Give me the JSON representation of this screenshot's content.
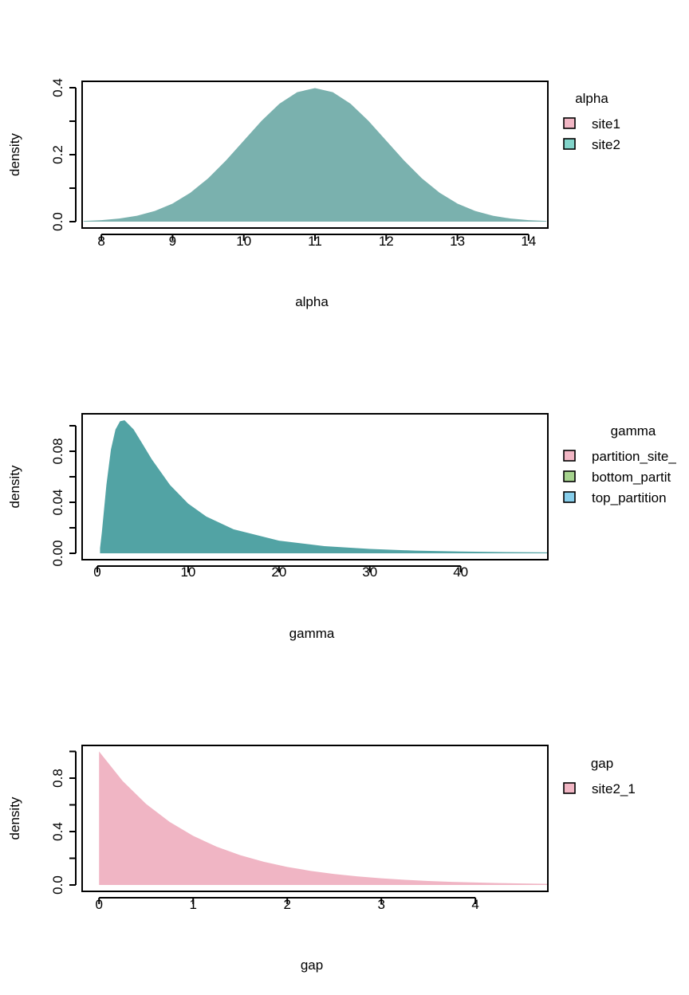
{
  "chart_data": [
    {
      "type": "area",
      "title": "",
      "xlabel": "alpha",
      "ylabel": "density",
      "xlim": [
        7.73,
        14.27
      ],
      "ylim": [
        0,
        0.4
      ],
      "xticks": [
        8,
        9,
        10,
        11,
        12,
        13,
        14
      ],
      "yticks": [
        0,
        0.1,
        0.2,
        0.3,
        0.4
      ],
      "ytick_labels": [
        "0.0",
        "0.2",
        "0.4"
      ],
      "ytick_label_values": [
        0,
        0.2,
        0.4
      ],
      "fill": "#7AB1AE",
      "x": [
        7.75,
        8,
        8.25,
        8.5,
        8.75,
        9,
        9.25,
        9.5,
        9.75,
        10,
        10.25,
        10.5,
        10.75,
        11,
        11.25,
        11.5,
        11.75,
        12,
        12.25,
        12.5,
        12.75,
        13,
        13.25,
        13.5,
        13.75,
        14,
        14.25
      ],
      "y": [
        0.002,
        0.0044,
        0.0091,
        0.0175,
        0.0317,
        0.054,
        0.0863,
        0.1295,
        0.1826,
        0.242,
        0.3011,
        0.3521,
        0.3867,
        0.3989,
        0.3867,
        0.3521,
        0.3011,
        0.242,
        0.1826,
        0.1295,
        0.0863,
        0.054,
        0.0317,
        0.0175,
        0.0091,
        0.0044,
        0.002
      ],
      "legend": {
        "title": "alpha",
        "placement": "right",
        "entries": [
          {
            "label": "site1",
            "color": "#F1B6C4"
          },
          {
            "label": "site2",
            "color": "#82D4CA"
          }
        ]
      }
    },
    {
      "type": "area",
      "title": "",
      "xlabel": "gamma",
      "ylabel": "density",
      "xlim": [
        -1.67,
        49.6
      ],
      "ylim": [
        0,
        0.1
      ],
      "xticks": [
        0,
        10,
        20,
        30,
        40
      ],
      "yticks": [
        0,
        0.02,
        0.04,
        0.06,
        0.08,
        0.1
      ],
      "ytick_labels": [
        "0.00",
        "0.04",
        "0.08"
      ],
      "ytick_label_values": [
        0,
        0.04,
        0.08
      ],
      "fill": "#52A3A4",
      "x": [
        0.3,
        0.5,
        1,
        1.5,
        2,
        2.5,
        3,
        4,
        5,
        6,
        8,
        10,
        12,
        15,
        20,
        25,
        30,
        35,
        40,
        45,
        49.6
      ],
      "y": [
        0.004,
        0.0164,
        0.0536,
        0.0814,
        0.097,
        0.1035,
        0.1043,
        0.0971,
        0.0855,
        0.0737,
        0.0536,
        0.039,
        0.0288,
        0.0188,
        0.0099,
        0.0056,
        0.0034,
        0.0021,
        0.0014,
        0.0009,
        0.0007
      ],
      "legend": {
        "title": "gamma",
        "placement": "right",
        "entries": [
          {
            "label": "partition_site_",
            "color": "#F1B6C4"
          },
          {
            "label": "bottom_partit",
            "color": "#A6D38E"
          },
          {
            "label": "top_partition",
            "color": "#87CEEB"
          }
        ]
      }
    },
    {
      "type": "area",
      "title": "",
      "xlabel": "gap",
      "ylabel": "density",
      "xlim": [
        -0.18,
        4.77
      ],
      "ylim": [
        0,
        1
      ],
      "xticks": [
        0,
        1,
        2,
        3,
        4
      ],
      "yticks": [
        0,
        0.2,
        0.4,
        0.6,
        0.8,
        1.0
      ],
      "ytick_labels": [
        "0.0",
        "0.4",
        "0.8"
      ],
      "ytick_label_values": [
        0,
        0.4,
        0.8
      ],
      "fill": "#F0B5C4",
      "x": [
        0,
        0.25,
        0.5,
        0.75,
        1,
        1.25,
        1.5,
        1.75,
        2,
        2.25,
        2.5,
        2.75,
        3,
        3.25,
        3.5,
        3.75,
        4,
        4.25,
        4.5,
        4.77
      ],
      "y": [
        1,
        0.7788,
        0.6065,
        0.4724,
        0.3679,
        0.2865,
        0.2231,
        0.1738,
        0.1353,
        0.1054,
        0.0821,
        0.0639,
        0.0498,
        0.0388,
        0.0302,
        0.0235,
        0.0183,
        0.0143,
        0.0111,
        0.0085
      ],
      "legend": {
        "title": "gap",
        "placement": "right",
        "entries": [
          {
            "label": "site2_1",
            "color": "#F1B6C4"
          }
        ]
      }
    }
  ]
}
